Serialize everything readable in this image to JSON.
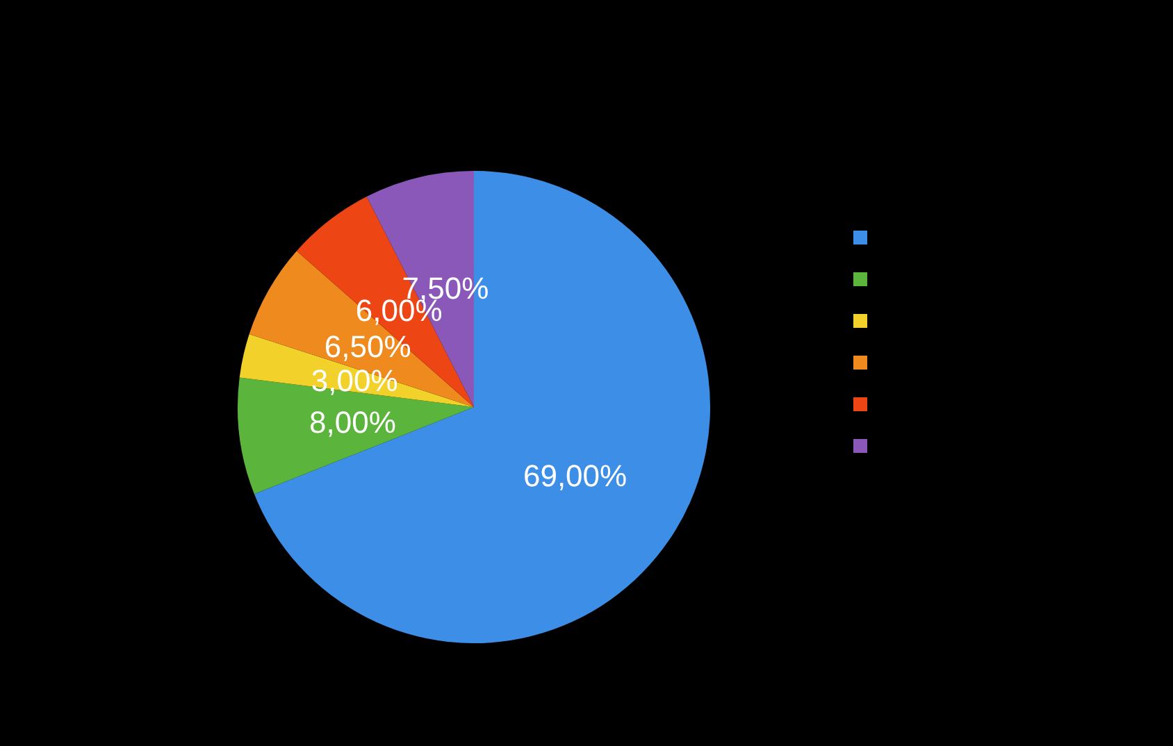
{
  "chart_data": {
    "type": "pie",
    "categories": [
      null,
      null,
      null,
      null,
      null,
      null
    ],
    "values": [
      69,
      8,
      3,
      6.5,
      6,
      7.5
    ],
    "value_labels": [
      "69,00%",
      "8,00%",
      "3,00%",
      "6,50%",
      "6,00%",
      "7,50%"
    ],
    "colors": [
      "#3d8ee6",
      "#5bb53c",
      "#f2d12a",
      "#ee8a1e",
      "#ee4514",
      "#8a58b8"
    ]
  }
}
